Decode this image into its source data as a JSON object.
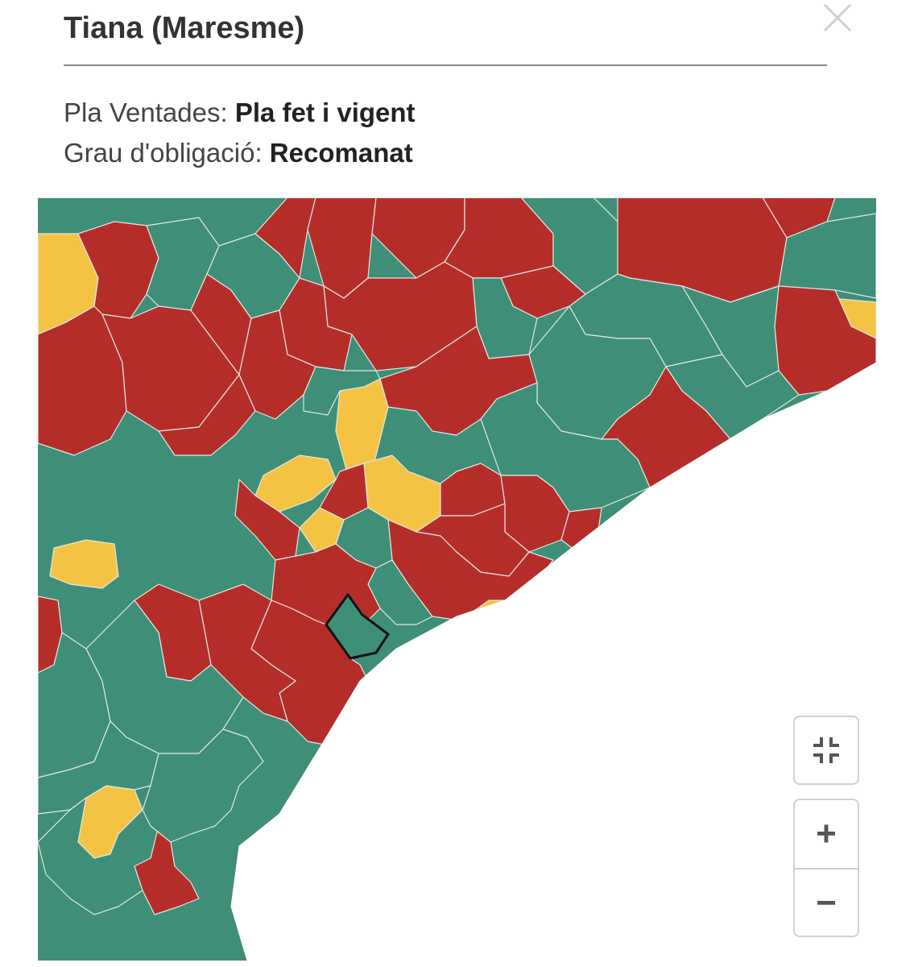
{
  "popup": {
    "title": "Tiana (Maresme)",
    "line1_label": "Pla Ventades: ",
    "line1_value": "Pla fet i vigent",
    "line2_label": "Grau d'obligació: ",
    "line2_value": "Recomanat"
  },
  "controls": {
    "fullscreen_icon": "exit-fullscreen-icon",
    "zoom_in_label": "+",
    "zoom_out_label": "−"
  },
  "colors": {
    "green": "#3f8e77",
    "red": "#b52d29",
    "yellow": "#f5c344",
    "sea": "#ffffff",
    "border": "#dfe9e4",
    "selected_outline": "#111111"
  }
}
